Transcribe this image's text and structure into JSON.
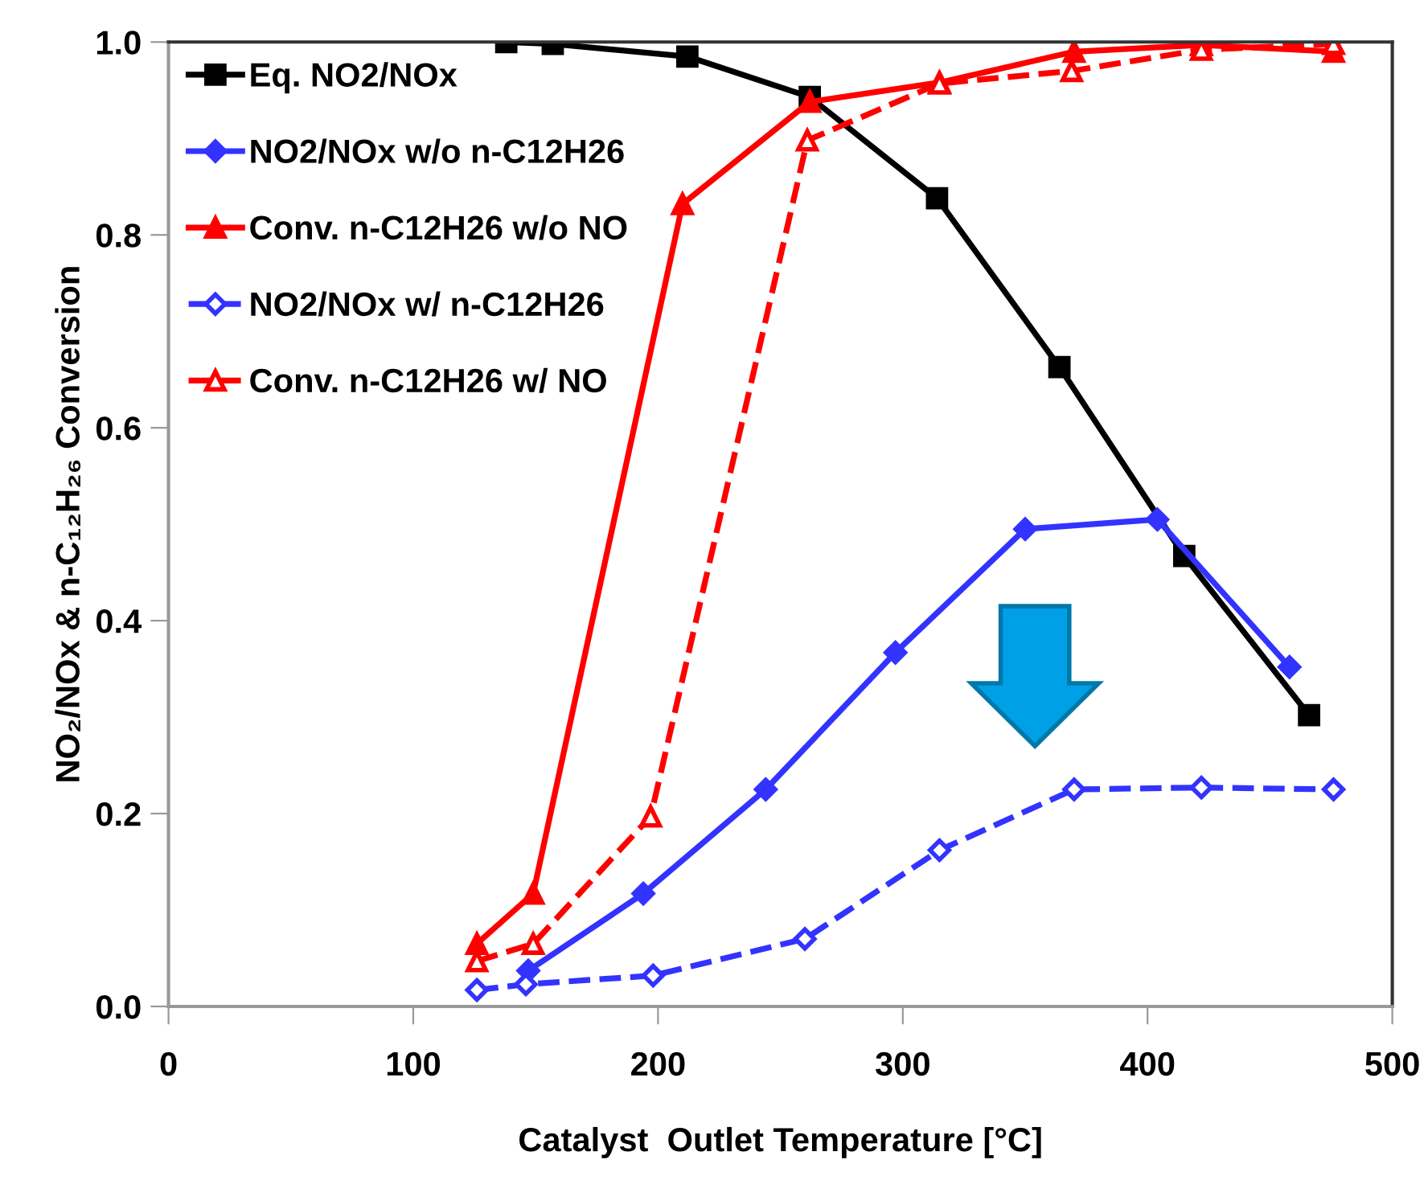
{
  "chart_data": {
    "type": "line",
    "xlabel": "Catalyst  Outlet Temperature [°C]",
    "ylabel": "NO₂/NOx & n-C₁₂H₂₆ Conversion",
    "xlim": [
      0,
      500
    ],
    "ylim": [
      0,
      1
    ],
    "xticks": [
      0,
      100,
      200,
      300,
      400,
      500
    ],
    "yticks": [
      {
        "value": 0,
        "label": "0.0"
      },
      {
        "value": 0.2,
        "label": "0.2"
      },
      {
        "value": 0.4,
        "label": "0.4"
      },
      {
        "value": 0.6,
        "label": "0.6"
      },
      {
        "value": 0.8,
        "label": "0.8"
      },
      {
        "value": 1,
        "label": "1.0"
      }
    ],
    "grid": false,
    "legend": "top left",
    "series": [
      {
        "name": "Eq. NO2/NOx",
        "color": "#000000",
        "marker": "square",
        "line_style": "solid",
        "x": [
          138,
          157,
          212,
          262,
          314,
          364,
          415,
          466
        ],
        "values": [
          1.0,
          0.998,
          0.985,
          0.943,
          0.838,
          0.663,
          0.467,
          0.302
        ]
      },
      {
        "name": "NO2/NOx w/o n-C12H26",
        "color": "#3333ff",
        "marker": "diamond",
        "line_style": "solid",
        "x": [
          147,
          194,
          244,
          297,
          350,
          404,
          458
        ],
        "values": [
          0.037,
          0.117,
          0.225,
          0.367,
          0.495,
          0.505,
          0.352
        ]
      },
      {
        "name": "Conv. n-C12H26 w/o NO",
        "color": "#ff0000",
        "marker": "triangle",
        "line_style": "solid",
        "x": [
          126,
          149,
          210,
          262,
          315,
          370,
          422,
          476
        ],
        "values": [
          0.065,
          0.117,
          0.832,
          0.938,
          0.958,
          0.99,
          0.997,
          0.99
        ]
      },
      {
        "name": "NO2/NOx w/ n-C12H26",
        "color": "#3333ff",
        "marker": "diamond",
        "line_style": "dashed",
        "x": [
          126,
          146,
          198,
          260,
          315,
          370,
          422,
          476
        ],
        "values": [
          0.017,
          0.023,
          0.032,
          0.07,
          0.162,
          0.225,
          0.227,
          0.225
        ]
      },
      {
        "name": "Conv. n-C12H26 w/ NO",
        "color": "#ff0000",
        "marker": "triangle",
        "line_style": "dashed",
        "x": [
          126,
          149,
          197,
          261,
          315,
          369,
          422,
          476
        ],
        "values": [
          0.047,
          0.065,
          0.197,
          0.898,
          0.957,
          0.97,
          0.992,
          0.998
        ]
      }
    ]
  }
}
